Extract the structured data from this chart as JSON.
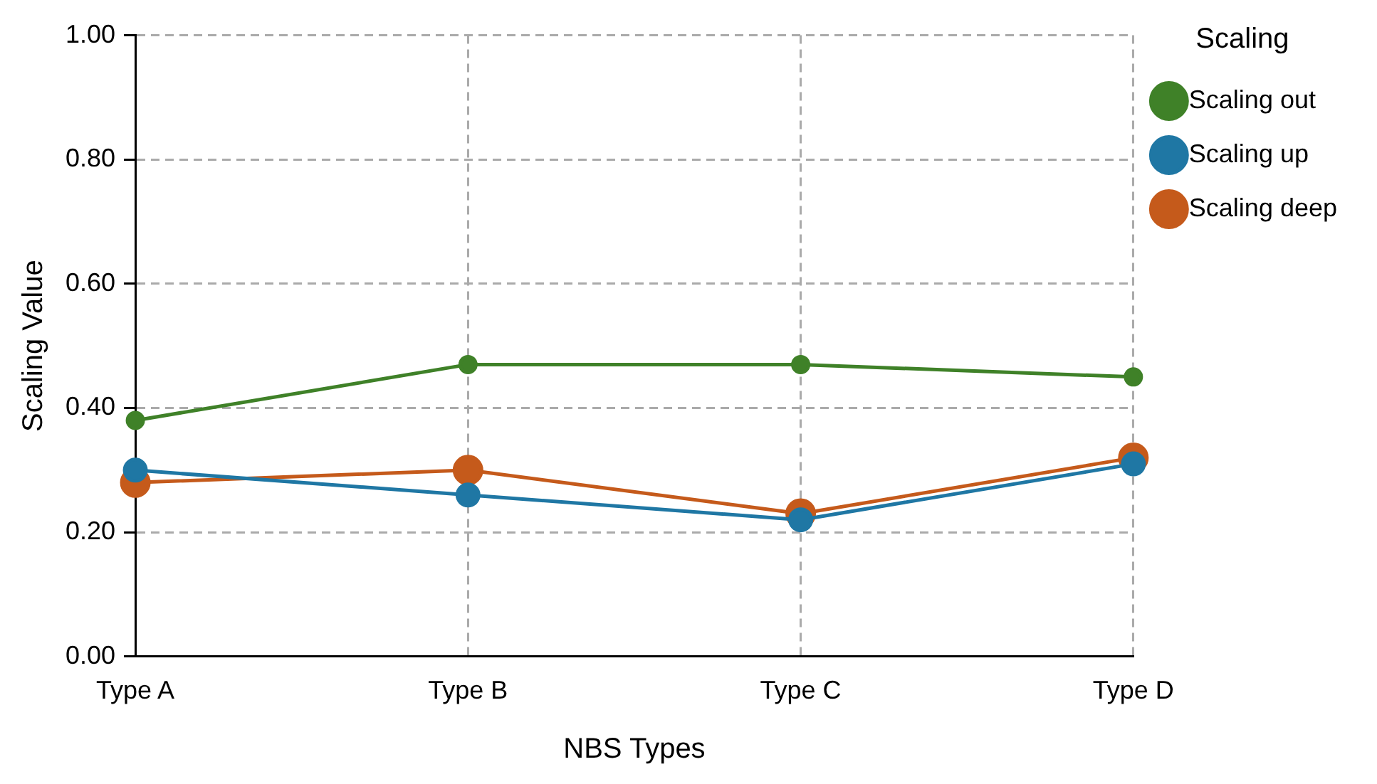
{
  "chart_data": {
    "type": "line",
    "xlabel": "NBS Types",
    "ylabel": "Scaling Value",
    "legend_title": "Scaling",
    "categories": [
      "Type A",
      "Type B",
      "Type C",
      "Type D"
    ],
    "series": [
      {
        "name": "Scaling out",
        "color": "#3f8128",
        "values": [
          0.38,
          0.47,
          0.47,
          0.45
        ]
      },
      {
        "name": "Scaling up",
        "color": "#1f77a4",
        "values": [
          0.3,
          0.26,
          0.22,
          0.31
        ]
      },
      {
        "name": "Scaling deep",
        "color": "#c55a1b",
        "values": [
          0.28,
          0.3,
          0.23,
          0.32
        ]
      }
    ],
    "ylim": [
      0,
      1
    ],
    "yticks": [
      {
        "value": 0,
        "label": "0.00"
      },
      {
        "value": 0.2,
        "label": "0.20"
      },
      {
        "value": 0.4,
        "label": "0.40"
      },
      {
        "value": 0.6,
        "label": "0.60"
      },
      {
        "value": 0.8,
        "label": "0.80"
      },
      {
        "value": 1,
        "label": "1.00"
      }
    ],
    "grid": true,
    "legend": "top right",
    "marker": "circle",
    "line_style": "solid"
  }
}
